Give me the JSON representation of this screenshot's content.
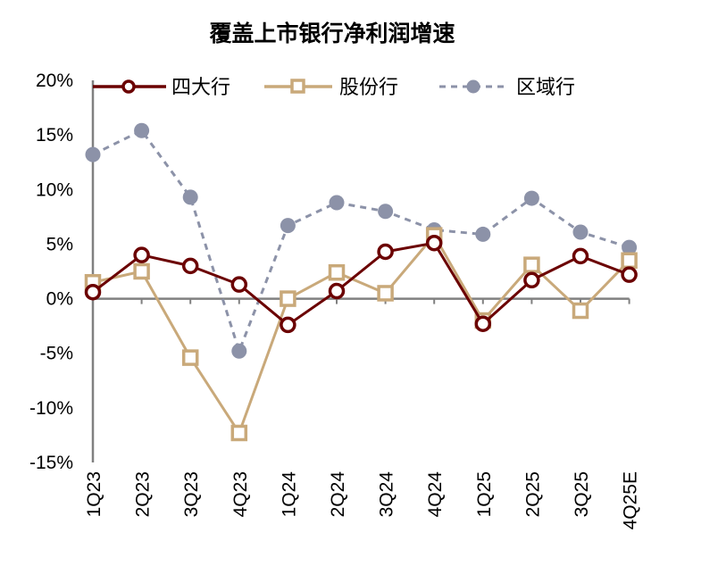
{
  "chart_data": {
    "type": "line",
    "title": "覆盖上市银行净利润增速",
    "xlabel": "",
    "ylabel": "",
    "categories": [
      "1Q23",
      "2Q23",
      "3Q23",
      "4Q23",
      "1Q24",
      "2Q24",
      "3Q24",
      "4Q24",
      "1Q25",
      "2Q25",
      "3Q25",
      "4Q25E"
    ],
    "ylim": [
      -15,
      20
    ],
    "yticks": [
      20,
      15,
      10,
      5,
      0,
      -5,
      -10,
      -15
    ],
    "ytick_labels": [
      "20%",
      "15%",
      "10%",
      "5%",
      "0%",
      "-5%",
      "-10%",
      "-15%"
    ],
    "legend_position": "top",
    "grid": false,
    "series": [
      {
        "name": "四大行",
        "color": "#6B0000",
        "marker": "circle-open",
        "line": "solid",
        "values": [
          0.6,
          4.0,
          3.0,
          1.3,
          -2.4,
          0.7,
          4.3,
          5.1,
          -2.3,
          1.7,
          3.9,
          2.2
        ]
      },
      {
        "name": "股份行",
        "color": "#C9A97A",
        "marker": "square-open",
        "line": "solid",
        "values": [
          1.5,
          2.5,
          -5.4,
          -12.3,
          0.0,
          2.4,
          0.5,
          5.8,
          -2.0,
          3.1,
          -1.1,
          3.5
        ]
      },
      {
        "name": "区域行",
        "color": "#8C92A8",
        "marker": "circle-filled",
        "line": "dashed",
        "values": [
          13.2,
          15.4,
          9.3,
          -4.8,
          6.7,
          8.8,
          8.0,
          6.3,
          5.9,
          9.2,
          6.1,
          4.7
        ]
      }
    ]
  }
}
